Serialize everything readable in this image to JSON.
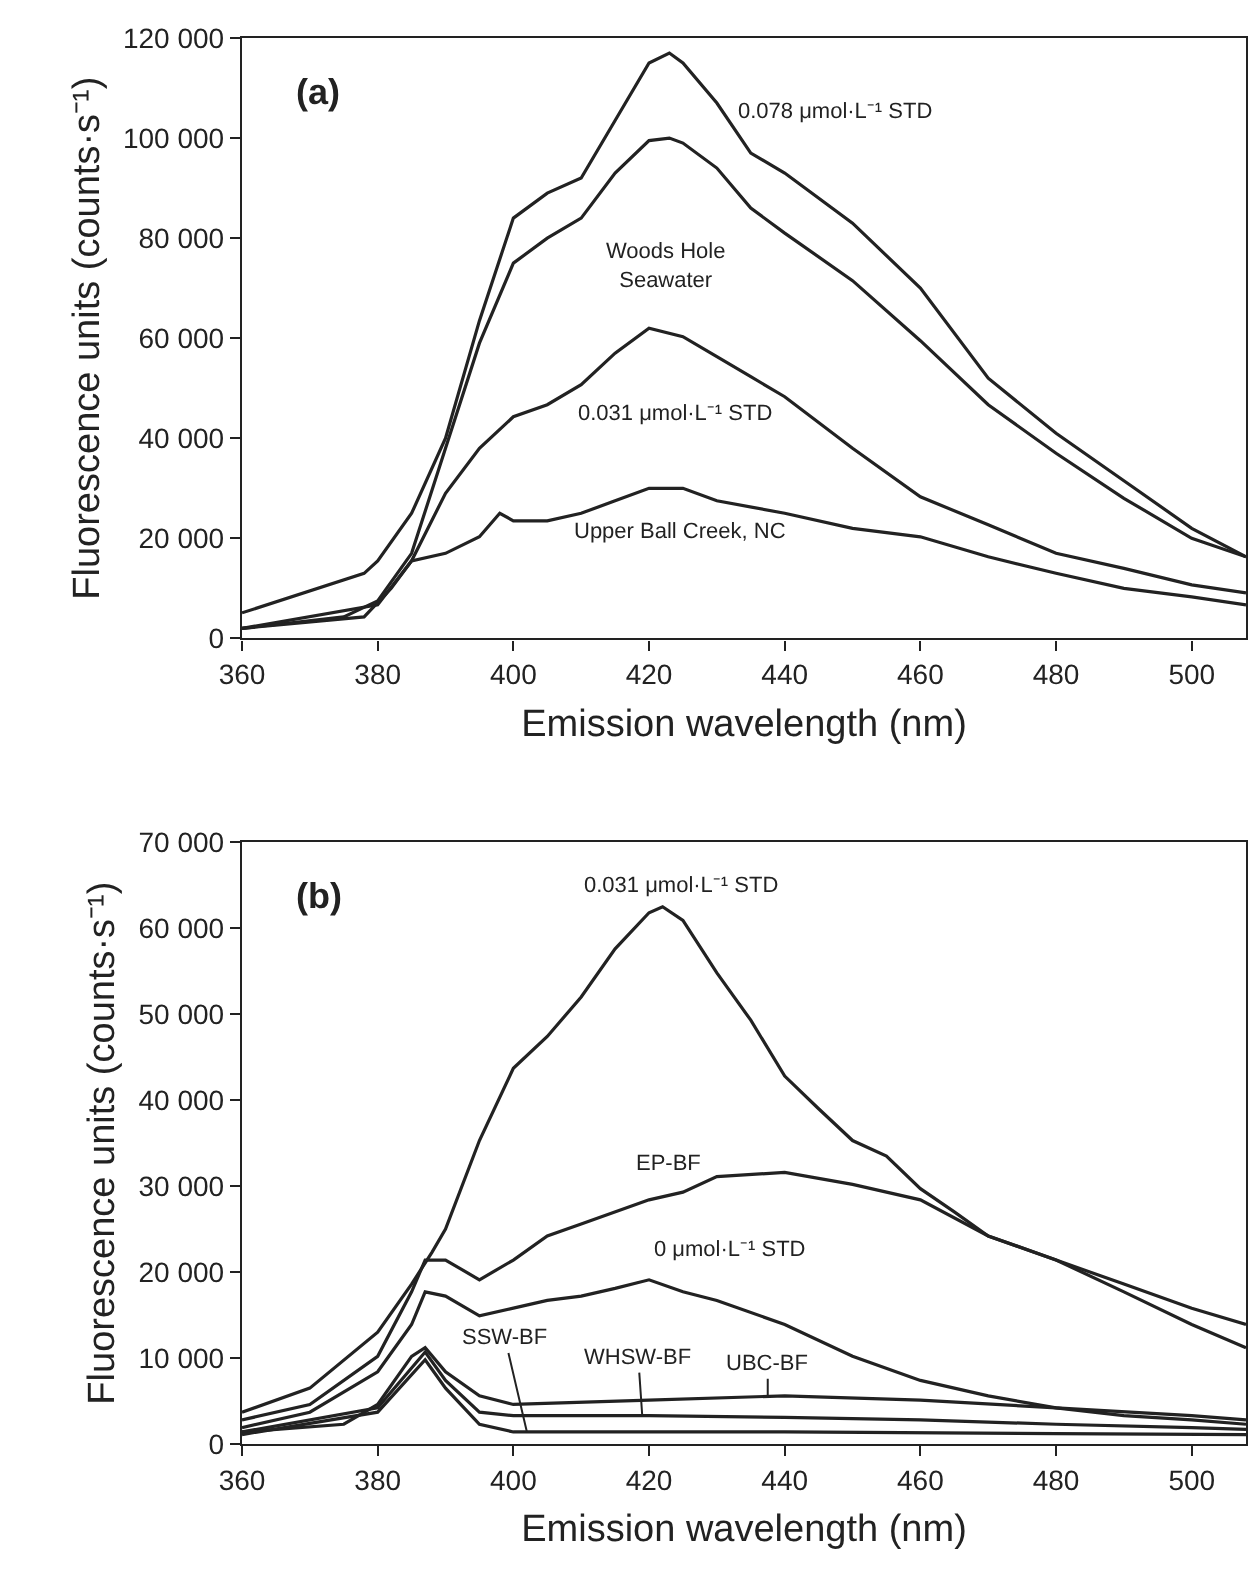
{
  "chart_data": [
    {
      "type": "line",
      "title": "(a)",
      "xlabel": "Emission wavelength (nm)",
      "ylabel": "Fluorescence units (counts·s⁻¹)",
      "xlim": [
        360,
        508
      ],
      "xticks": [
        360,
        380,
        400,
        420,
        440,
        460,
        480,
        500
      ],
      "ylim": [
        0,
        120000
      ],
      "yticks": [
        0,
        {
          "value": 20000,
          "label": "20 000"
        },
        {
          "value": 40000,
          "label": "40 000"
        },
        {
          "value": 60000,
          "label": "60 000"
        },
        {
          "value": 80000,
          "label": "80 000"
        },
        {
          "value": 100000,
          "label": "100 000"
        },
        {
          "value": 120000,
          "label": "120 000"
        }
      ],
      "line_style": "solid",
      "series": [
        {
          "color": "#222222",
          "x": [
            360,
            378,
            380,
            385,
            390,
            395,
            400,
            405,
            410,
            415,
            420,
            423,
            425,
            430,
            435,
            440,
            450,
            460,
            470,
            480,
            490,
            500,
            508
          ],
          "values": [
            5100,
            13000,
            15500,
            25000,
            40000,
            63500,
            84000,
            89000,
            92000,
            103500,
            115000,
            117000,
            115000,
            107000,
            97000,
            93000,
            83000,
            70000,
            52000,
            41000,
            31500,
            22000,
            16300
          ]
        },
        {
          "color": "#222222",
          "x": [
            360,
            375,
            380,
            385,
            390,
            395,
            400,
            405,
            410,
            415,
            420,
            423,
            425,
            430,
            435,
            440,
            450,
            460,
            470,
            480,
            490,
            500,
            508
          ],
          "values": [
            2000,
            4300,
            7500,
            17000,
            38000,
            59000,
            75000,
            80000,
            84000,
            93000,
            99500,
            100000,
            99000,
            94000,
            86000,
            81000,
            71500,
            59500,
            46700,
            37000,
            28000,
            20000,
            16300
          ]
        },
        {
          "color": "#222222",
          "x": [
            360,
            380,
            385,
            390,
            395,
            400,
            405,
            410,
            415,
            420,
            425,
            430,
            435,
            440,
            450,
            460,
            470,
            480,
            490,
            500,
            508
          ],
          "values": [
            2000,
            6700,
            15500,
            29000,
            38000,
            44300,
            46700,
            50700,
            57000,
            62000,
            60300,
            56300,
            52300,
            48300,
            38000,
            28300,
            22700,
            17000,
            14000,
            10700,
            9100
          ]
        },
        {
          "color": "#222222",
          "x": [
            360,
            378,
            382,
            385,
            390,
            395,
            398,
            400,
            405,
            410,
            415,
            420,
            425,
            430,
            440,
            450,
            460,
            470,
            480,
            490,
            500,
            508
          ],
          "values": [
            2000,
            4300,
            10000,
            15500,
            17000,
            20300,
            25000,
            23500,
            23500,
            25000,
            27500,
            30000,
            30000,
            27500,
            25000,
            22000,
            20300,
            16300,
            13000,
            10000,
            8300,
            6700
          ]
        }
      ],
      "annotations": [
        "0.078 μmol·L⁻¹ STD",
        "Woods Hole\nSeawater",
        "0.031 μmol·L⁻¹ STD",
        "Upper Ball Creek, NC"
      ]
    },
    {
      "type": "line",
      "title": "(b)",
      "xlabel": "Emission wavelength (nm)",
      "ylabel": "Fluorescence units (counts·s⁻¹)",
      "xlim": [
        360,
        508
      ],
      "xticks": [
        360,
        380,
        400,
        420,
        440,
        460,
        480,
        500
      ],
      "ylim": [
        0,
        70000
      ],
      "yticks": [
        0,
        {
          "value": 10000,
          "label": "10 000"
        },
        {
          "value": 20000,
          "label": "20 000"
        },
        {
          "value": 30000,
          "label": "30 000"
        },
        {
          "value": 40000,
          "label": "40 000"
        },
        {
          "value": 50000,
          "label": "50 000"
        },
        {
          "value": 60000,
          "label": "60 000"
        },
        {
          "value": 70000,
          "label": "70 000"
        }
      ],
      "line_style": "solid",
      "series": [
        {
          "color": "#222222",
          "x": [
            360,
            370,
            380,
            385,
            388,
            390,
            395,
            400,
            405,
            410,
            415,
            420,
            422,
            425,
            430,
            435,
            440,
            445,
            450,
            455,
            460,
            465,
            470,
            480,
            490,
            500,
            508
          ],
          "values": [
            3700,
            6500,
            13000,
            18600,
            22300,
            25000,
            35300,
            43700,
            47400,
            52000,
            57600,
            61800,
            62500,
            60900,
            54800,
            49300,
            42800,
            39000,
            35300,
            33500,
            29700,
            27000,
            24200,
            21400,
            18600,
            15800,
            13900
          ]
        },
        {
          "color": "#222222",
          "x": [
            360,
            370,
            380,
            385,
            387,
            390,
            395,
            400,
            405,
            410,
            420,
            425,
            430,
            440,
            450,
            460,
            470,
            480,
            490,
            500,
            508
          ],
          "values": [
            2800,
            4600,
            10200,
            17700,
            21400,
            21400,
            19100,
            21400,
            24200,
            25600,
            28400,
            29300,
            31100,
            31600,
            30200,
            28400,
            24200,
            21400,
            17700,
            13900,
            11200
          ]
        },
        {
          "color": "#222222",
          "x": [
            360,
            370,
            380,
            385,
            387,
            390,
            395,
            400,
            405,
            410,
            415,
            420,
            425,
            430,
            440,
            450,
            460,
            470,
            480,
            490,
            500,
            508
          ],
          "values": [
            1900,
            3700,
            8400,
            13900,
            17700,
            17200,
            14900,
            15800,
            16700,
            17200,
            18100,
            19100,
            17700,
            16700,
            13900,
            10200,
            7400,
            5600,
            4200,
            3300,
            2800,
            2300
          ]
        },
        {
          "color": "#222222",
          "x": [
            360,
            375,
            380,
            385,
            387,
            390,
            395,
            400,
            420,
            440,
            460,
            480,
            500,
            508
          ],
          "values": [
            1400,
            2300,
            4600,
            10200,
            11200,
            8400,
            5600,
            4600,
            5100,
            5600,
            5100,
            4200,
            3300,
            2800
          ]
        },
        {
          "color": "#222222",
          "x": [
            360,
            380,
            387,
            390,
            395,
            400,
            420,
            440,
            460,
            480,
            500,
            508
          ],
          "values": [
            1400,
            4200,
            10700,
            7400,
            3700,
            3300,
            3300,
            3100,
            2800,
            2300,
            1900,
            1700
          ]
        },
        {
          "color": "#222222",
          "x": [
            360,
            380,
            387,
            390,
            395,
            400,
            440,
            480,
            508
          ],
          "values": [
            1100,
            3700,
            9800,
            6500,
            2300,
            1400,
            1400,
            1200,
            1100
          ]
        }
      ],
      "annotations": [
        "0.031 μmol·L⁻¹ STD",
        "EP-BF",
        "0 μmol·L⁻¹ STD",
        {
          "text": "SSW-BF",
          "x": 402,
          "y": 1400
        },
        {
          "text": "WHSW-BF",
          "x": 419,
          "y": 3300
        },
        {
          "text": "UBC-BF",
          "x": 437.5,
          "y": 5600
        }
      ]
    }
  ]
}
